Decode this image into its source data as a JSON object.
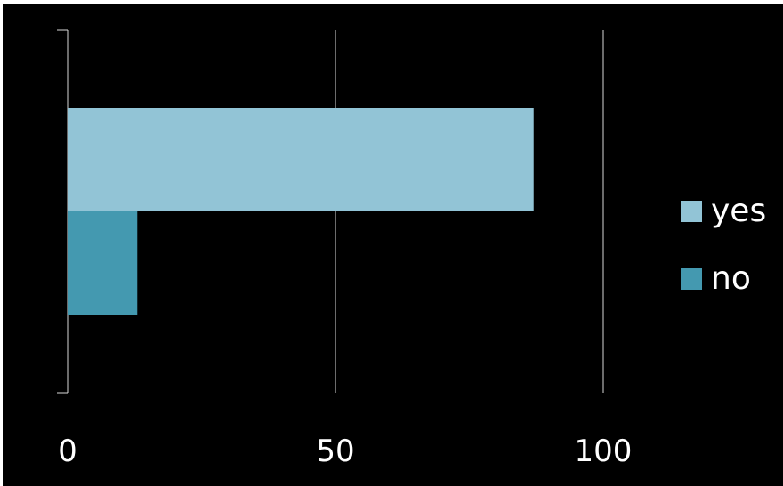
{
  "chart_data": {
    "type": "bar",
    "orientation": "horizontal",
    "categories": [
      ""
    ],
    "series": [
      {
        "name": "yes",
        "values": [
          87
        ],
        "color": "#92c4d6"
      },
      {
        "name": "no",
        "values": [
          13
        ],
        "color": "#4499b0"
      }
    ],
    "xlim": [
      0,
      100
    ],
    "x_ticks": [
      0,
      50,
      100
    ],
    "x_tick_labels": [
      "0",
      "50",
      "100"
    ],
    "grid": true,
    "legend_position": "right",
    "background": "#000000",
    "text_color": "#ffffff",
    "grid_color": "#d9d9d9"
  }
}
